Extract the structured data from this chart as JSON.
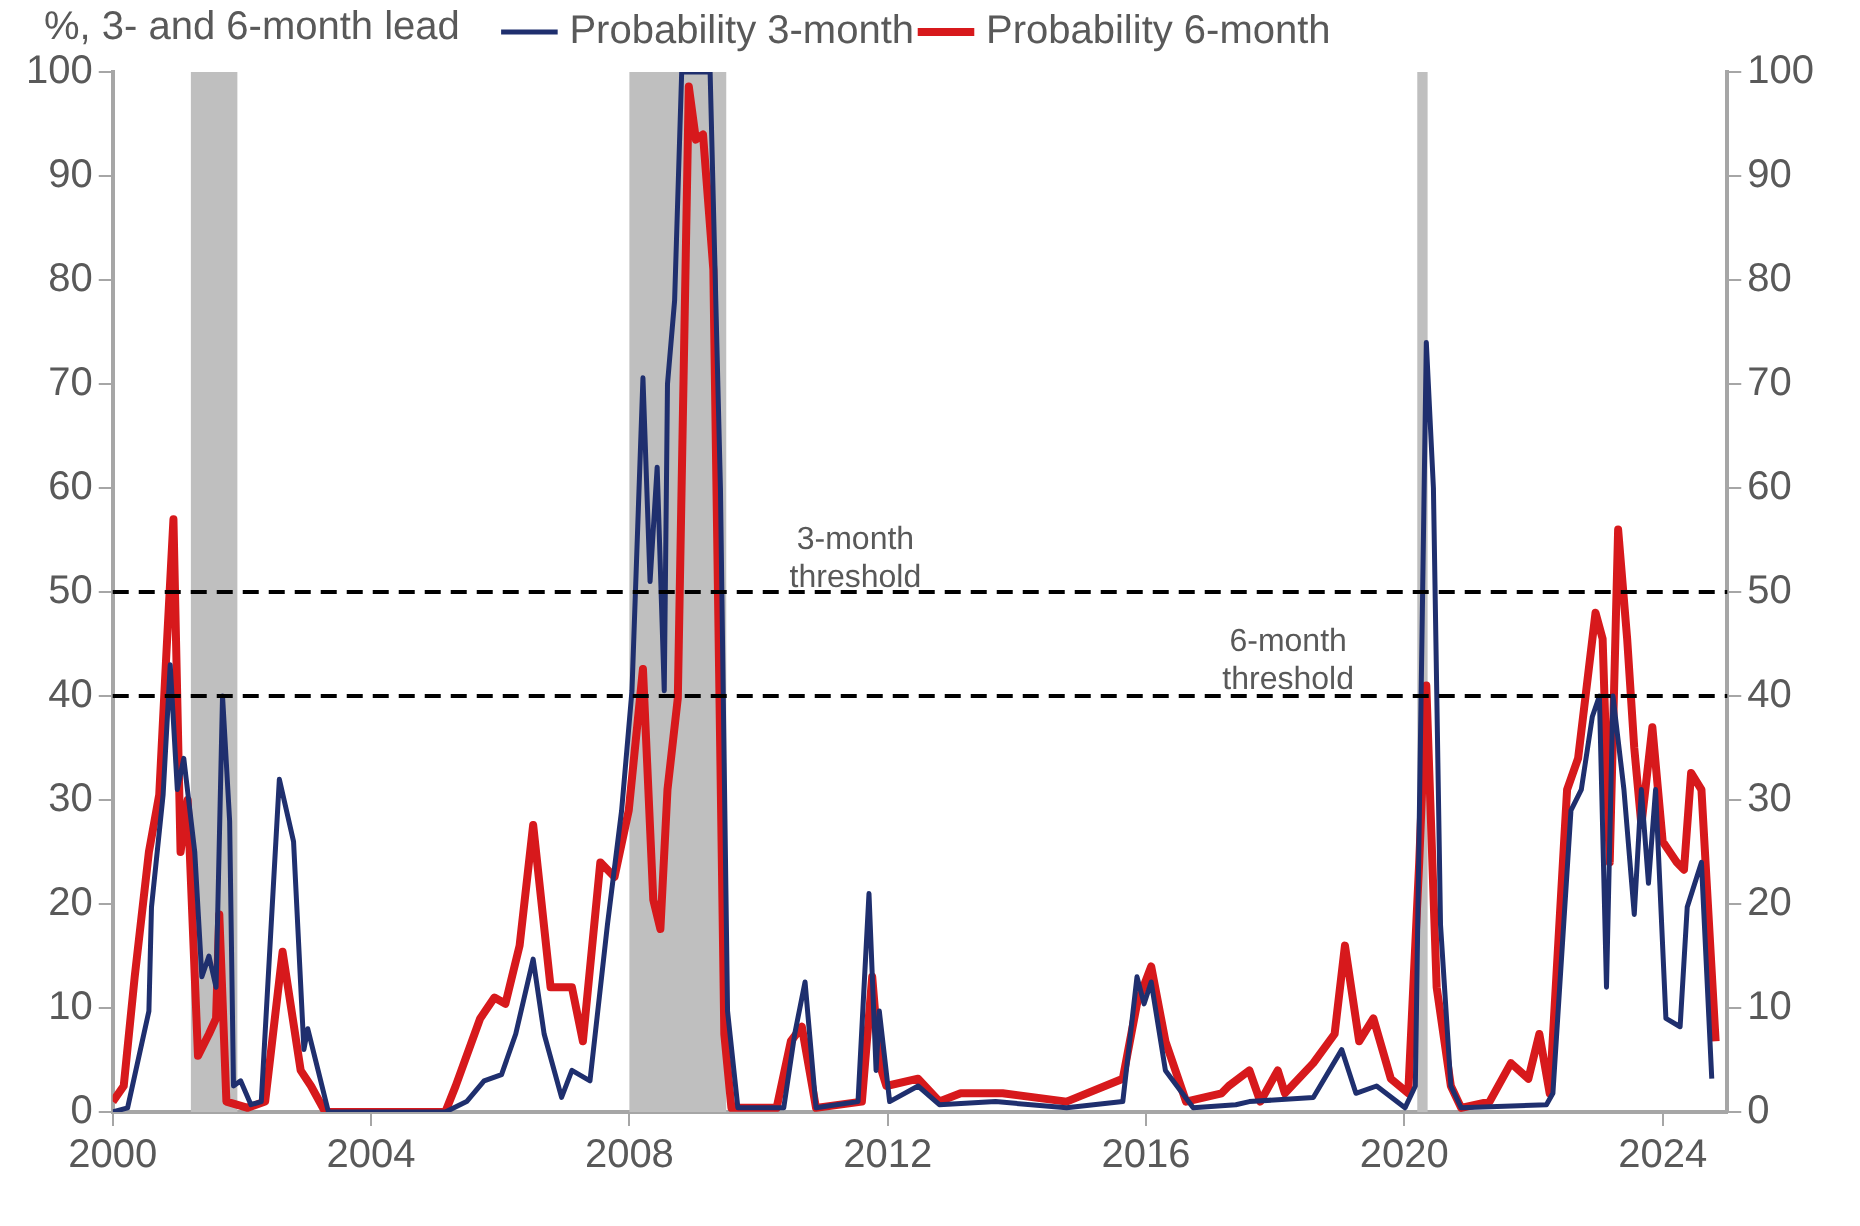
{
  "chart_data": {
    "type": "line",
    "ylabel": "%, 3- and 6-month lead",
    "xlim": [
      2000,
      2025
    ],
    "xticks": [
      2000,
      2004,
      2008,
      2012,
      2016,
      2020,
      2024
    ],
    "ylim": [
      0,
      100
    ],
    "yticks": [
      0,
      10,
      20,
      30,
      40,
      50,
      60,
      70,
      80,
      90,
      100
    ],
    "y2lim": [
      0,
      100
    ],
    "y2ticks": [
      0,
      10,
      20,
      30,
      40,
      50,
      60,
      70,
      80,
      90,
      100
    ],
    "grid": false,
    "legend": "top",
    "marker": "none",
    "line_style": "solid",
    "series": [
      {
        "name": "Probability 3-month",
        "color": "#1f2f6e",
        "x": [
          2000.0,
          2000.23,
          2000.56,
          2000.6,
          2000.78,
          2000.89,
          2001.0,
          2001.1,
          2001.27,
          2001.38,
          2001.49,
          2001.6,
          2001.7,
          2001.81,
          2001.87,
          2001.98,
          2002.14,
          2002.3,
          2002.58,
          2002.8,
          2002.96,
          2003.02,
          2003.18,
          2003.34,
          2005.15,
          2005.48,
          2005.75,
          2006.02,
          2006.24,
          2006.51,
          2006.68,
          2006.95,
          2007.11,
          2007.39,
          2007.66,
          2007.88,
          2008.04,
          2008.21,
          2008.32,
          2008.43,
          2008.54,
          2008.59,
          2008.7,
          2008.81,
          2009.25,
          2009.41,
          2009.52,
          2009.68,
          2010.39,
          2010.56,
          2010.72,
          2010.89,
          2011.54,
          2011.71,
          2011.82,
          2011.87,
          2012.03,
          2012.47,
          2012.8,
          2013.67,
          2014.77,
          2015.64,
          2015.86,
          2015.97,
          2016.08,
          2016.3,
          2016.73,
          2017.39,
          2017.6,
          2018.59,
          2019.03,
          2019.25,
          2019.57,
          2020.01,
          2020.17,
          2020.34,
          2020.45,
          2020.56,
          2020.72,
          2020.88,
          2022.2,
          2022.3,
          2022.58,
          2022.74,
          2022.91,
          2023.02,
          2023.13,
          2023.23,
          2023.4,
          2023.56,
          2023.67,
          2023.78,
          2023.89,
          2024.05,
          2024.27,
          2024.38,
          2024.6,
          2024.76
        ],
        "values": [
          0,
          0.4,
          9.7,
          19.7,
          30.5,
          43,
          31,
          34,
          25,
          13,
          15,
          12,
          40,
          28,
          2.5,
          3,
          0.7,
          1,
          32,
          26,
          6,
          8,
          4,
          0,
          0,
          1,
          3,
          3.6,
          7.5,
          14.7,
          7.5,
          1.4,
          4,
          3,
          18,
          29,
          40.5,
          70.6,
          51,
          62,
          40.5,
          70,
          78,
          100,
          100,
          60,
          9.7,
          0.4,
          0.4,
          7.5,
          12.5,
          0.4,
          1,
          21,
          4,
          9.7,
          1,
          2.5,
          0.7,
          1,
          0.4,
          1,
          13,
          10.4,
          12.5,
          4,
          0.4,
          0.7,
          1,
          1.4,
          6,
          1.8,
          2.5,
          0.4,
          2.5,
          74,
          60,
          18,
          2.5,
          0.4,
          0.7,
          1.8,
          29,
          31,
          38,
          40,
          12,
          40,
          31,
          19,
          31,
          22,
          31,
          9,
          8.2,
          19.7,
          24,
          3.2
        ]
      },
      {
        "name": "Probability 6-month",
        "color": "#d7191c",
        "x": [
          2000.0,
          2000.17,
          2000.34,
          2000.56,
          2000.72,
          2000.83,
          2000.94,
          2001.05,
          2001.16,
          2001.32,
          2001.49,
          2001.6,
          2001.65,
          2001.76,
          2002.09,
          2002.36,
          2002.63,
          2002.91,
          2003.07,
          2003.29,
          2005.15,
          2005.31,
          2005.69,
          2005.91,
          2006.08,
          2006.3,
          2006.51,
          2006.78,
          2007.11,
          2007.28,
          2007.55,
          2007.77,
          2007.99,
          2008.21,
          2008.37,
          2008.48,
          2008.59,
          2008.75,
          2008.92,
          2009.03,
          2009.14,
          2009.3,
          2009.47,
          2009.58,
          2010.28,
          2010.5,
          2010.67,
          2010.89,
          2011.6,
          2011.76,
          2011.87,
          2011.98,
          2012.47,
          2012.8,
          2013.13,
          2013.78,
          2014.77,
          2015.64,
          2015.86,
          2016.08,
          2016.3,
          2016.62,
          2017.17,
          2017.28,
          2017.6,
          2017.77,
          2018.04,
          2018.15,
          2018.59,
          2018.92,
          2019.08,
          2019.3,
          2019.52,
          2019.79,
          2020.06,
          2020.23,
          2020.34,
          2020.5,
          2020.72,
          2020.88,
          2021.32,
          2021.65,
          2021.92,
          2022.09,
          2022.25,
          2022.52,
          2022.69,
          2022.96,
          2023.07,
          2023.18,
          2023.31,
          2023.45,
          2023.56,
          2023.67,
          2023.84,
          2024.0,
          2024.22,
          2024.33,
          2024.44,
          2024.6,
          2024.82
        ],
        "values": [
          1,
          2.5,
          13,
          25,
          30.5,
          44,
          57,
          25,
          30,
          5.4,
          7.5,
          9,
          19,
          1,
          0.4,
          1,
          15.4,
          4,
          2.5,
          0,
          0,
          2.5,
          9,
          11,
          10.4,
          16,
          27.6,
          12,
          12,
          6.8,
          24,
          22.6,
          29,
          42.6,
          20.4,
          17.6,
          31,
          39.8,
          98.6,
          93.5,
          94,
          81,
          7.5,
          0.4,
          0.4,
          6.8,
          8.2,
          0.4,
          1,
          13,
          4.7,
          2.5,
          3.2,
          1,
          1.8,
          1.8,
          1,
          3.2,
          10.4,
          14,
          6.8,
          1,
          1.8,
          2.5,
          4,
          1,
          4,
          1.8,
          4.7,
          7.5,
          16,
          6.8,
          9,
          3.2,
          1.8,
          24,
          41,
          12,
          2.5,
          0.4,
          1,
          4.7,
          3.2,
          7.5,
          1.8,
          31,
          34,
          48,
          45.5,
          24,
          56,
          45.5,
          35,
          27.6,
          37,
          26,
          24,
          23.3,
          32.6,
          31,
          6.8
        ]
      }
    ],
    "ref_lines": [
      {
        "axis": "y",
        "value": 50,
        "label": "3-month threshold",
        "color": "#000000",
        "line_style": "dashed"
      },
      {
        "axis": "y",
        "value": 40,
        "label": "6-month threshold",
        "color": "#000000",
        "line_style": "dashed"
      }
    ],
    "bands": [
      {
        "axis": "x",
        "from": 2001.21,
        "to": 2001.93,
        "color": "#bfbfbf"
      },
      {
        "axis": "x",
        "from": 2008.0,
        "to": 2009.5,
        "color": "#bfbfbf"
      },
      {
        "axis": "x",
        "from": 2020.2,
        "to": 2020.36,
        "color": "#bfbfbf"
      }
    ]
  }
}
